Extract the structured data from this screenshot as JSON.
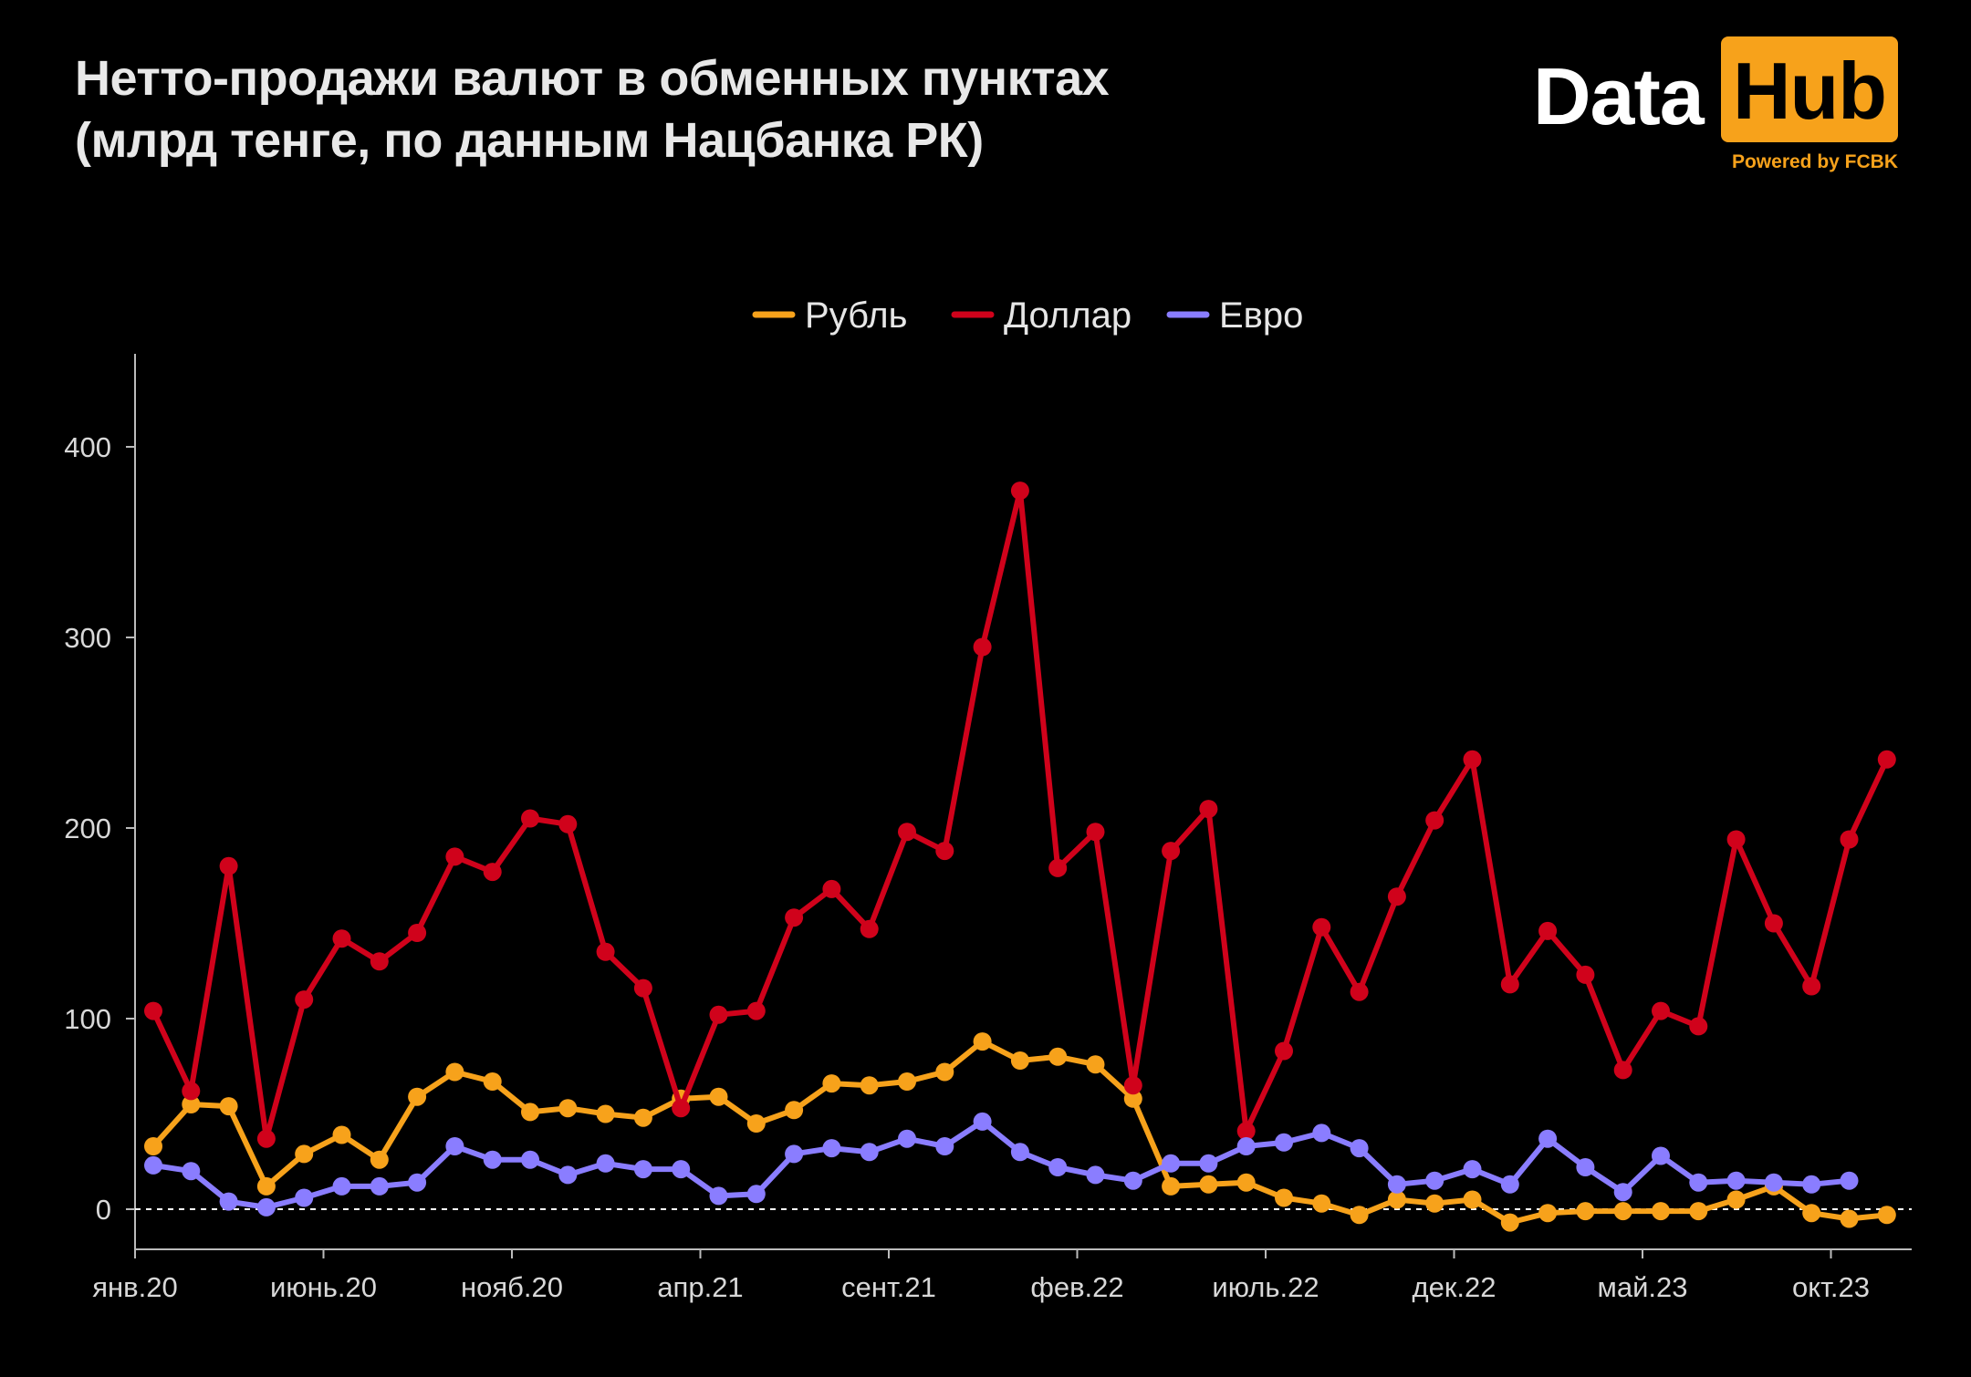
{
  "title": {
    "line1": "Нетто-продажи валют в обменных пунктах",
    "line2": "(млрд тенге, по данным Нацбанка РК)"
  },
  "logo": {
    "word1": "Data",
    "word2": "Hub",
    "powered": "Powered by FCBK"
  },
  "colors": {
    "background": "#000000",
    "ruble": "#f7a21b",
    "dollar": "#d0021b",
    "euro": "#8a7dff",
    "axis": "#bbbbbb",
    "zero_line": "#ffffff",
    "logo_accent": "#f7a21b"
  },
  "chart_data": {
    "type": "line",
    "title": "",
    "xlabel": "",
    "ylabel": "",
    "ylim": [
      -20,
      450
    ],
    "yticks": [
      0,
      100,
      200,
      300,
      400
    ],
    "grid": false,
    "zero_reference_line": "dashed",
    "legend_position": "top-center",
    "x_tick_labels": [
      "янв.20",
      "июнь.20",
      "нояб.20",
      "апр.21",
      "сент.21",
      "фев.22",
      "июль.22",
      "дек.22",
      "май.23",
      "окт.23"
    ],
    "x": [
      "2020-01",
      "2020-02",
      "2020-03",
      "2020-04",
      "2020-05",
      "2020-06",
      "2020-07",
      "2020-08",
      "2020-09",
      "2020-10",
      "2020-11",
      "2020-12",
      "2021-01",
      "2021-02",
      "2021-03",
      "2021-04",
      "2021-05",
      "2021-06",
      "2021-07",
      "2021-08",
      "2021-09",
      "2021-10",
      "2021-11",
      "2021-12",
      "2022-01",
      "2022-02",
      "2022-03",
      "2022-04",
      "2022-05",
      "2022-06",
      "2022-07",
      "2022-08",
      "2022-09",
      "2022-10",
      "2022-11",
      "2022-12",
      "2023-01",
      "2023-02",
      "2023-03",
      "2023-04",
      "2023-05",
      "2023-06",
      "2023-07",
      "2023-08",
      "2023-09",
      "2023-10",
      "2023-11",
      "2023-12"
    ],
    "series": [
      {
        "name": "Рубль",
        "color": "#f7a21b",
        "values": [
          33,
          55,
          54,
          12,
          29,
          39,
          26,
          59,
          72,
          67,
          51,
          53,
          50,
          48,
          58,
          59,
          45,
          52,
          66,
          65,
          67,
          72,
          88,
          78,
          80,
          76,
          58,
          12,
          13,
          14,
          6,
          3,
          -3,
          5,
          3,
          5,
          -7,
          -2,
          -1,
          -1,
          -1,
          -1,
          5,
          12,
          -2,
          -5,
          -3,
          null
        ]
      },
      {
        "name": "Доллар",
        "color": "#d0021b",
        "values": [
          104,
          62,
          180,
          37,
          110,
          142,
          130,
          145,
          185,
          177,
          205,
          202,
          135,
          116,
          53,
          102,
          104,
          153,
          168,
          147,
          198,
          188,
          295,
          377,
          179,
          198,
          65,
          188,
          210,
          41,
          83,
          148,
          114,
          164,
          204,
          236,
          118,
          146,
          123,
          73,
          104,
          96,
          194,
          150,
          117,
          194,
          236,
          null
        ]
      },
      {
        "name": "Евро",
        "color": "#8a7dff",
        "values": [
          23,
          20,
          4,
          1,
          6,
          12,
          12,
          14,
          33,
          26,
          26,
          18,
          24,
          21,
          21,
          7,
          8,
          29,
          32,
          30,
          37,
          33,
          46,
          30,
          22,
          18,
          15,
          24,
          24,
          33,
          35,
          40,
          32,
          13,
          15,
          21,
          13,
          37,
          22,
          9,
          28,
          14,
          15,
          14,
          13,
          15,
          null,
          null
        ]
      }
    ]
  }
}
